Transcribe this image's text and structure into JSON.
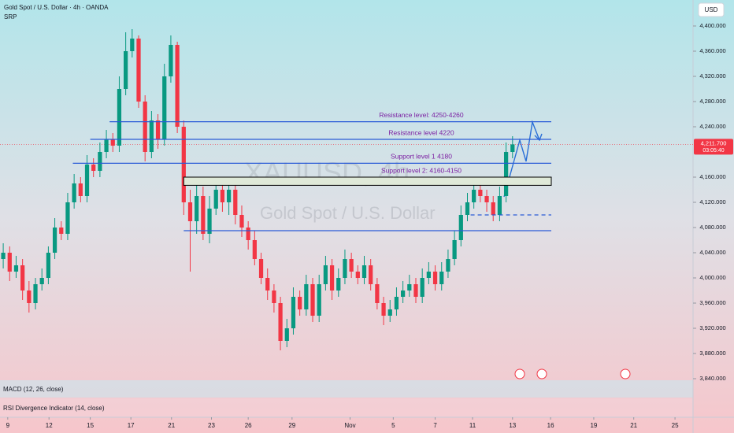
{
  "chart_data": {
    "type": "candlestick",
    "title": "Gold Spot / U.S. Dollar · 4h · OANDA",
    "subtitle": "SRP",
    "watermark": "XAUUSD, 4h",
    "watermark_sub": "Gold Spot / U.S. Dollar",
    "currency": "USD",
    "price_label": "4,211.700",
    "countdown": "03:05:40",
    "last_price": 4212,
    "up_color": "#089981",
    "down_color": "#f23645",
    "level_color": "#2a5bd7",
    "open": [
      4030,
      4040,
      4010,
      4020,
      3980,
      3960,
      3990,
      4000,
      4040,
      4080,
      4070,
      4120,
      4150,
      4130,
      4180,
      4170,
      4200,
      4220,
      4210,
      4300,
      4360,
      4380,
      4280,
      4200,
      4250,
      4220,
      4320,
      4370,
      4240,
      4120,
      4090,
      4130,
      4070,
      4110,
      4140,
      4120,
      4140,
      4100,
      4080,
      4060,
      4030,
      4000,
      3980,
      3960,
      3900,
      3920,
      3970,
      3950,
      3990,
      3940,
      3990,
      4020,
      3980,
      4000,
      4030,
      4010,
      4000,
      4020,
      3990,
      3960,
      3940,
      3950,
      3970,
      3980,
      3990,
      3970,
      4000,
      4010,
      3990,
      4010,
      4030,
      4060,
      4100,
      4120,
      4140,
      4130,
      4120,
      4100,
      4130,
      4200
    ],
    "high": [
      4055,
      4050,
      4035,
      4030,
      3995,
      4000,
      4015,
      4050,
      4095,
      4090,
      4135,
      4165,
      4160,
      4195,
      4190,
      4215,
      4235,
      4230,
      4320,
      4390,
      4395,
      4385,
      4290,
      4265,
      4260,
      4340,
      4385,
      4375,
      4250,
      4140,
      4150,
      4145,
      4130,
      4155,
      4150,
      4160,
      4150,
      4115,
      4090,
      4075,
      4040,
      4015,
      3990,
      3970,
      3935,
      3985,
      3980,
      4005,
      4000,
      4005,
      4035,
      4030,
      4015,
      4045,
      4040,
      4020,
      4035,
      4030,
      4000,
      3970,
      3965,
      3985,
      3995,
      4005,
      4000,
      4015,
      4025,
      4020,
      4025,
      4045,
      4075,
      4115,
      4135,
      4150,
      4150,
      4140,
      4130,
      4145,
      4215,
      4225
    ],
    "low": [
      4015,
      3995,
      4000,
      3965,
      3945,
      3950,
      3980,
      3990,
      4030,
      4060,
      4060,
      4110,
      4120,
      4120,
      4160,
      4160,
      4190,
      4200,
      4200,
      4290,
      4350,
      4270,
      4185,
      4190,
      4205,
      4210,
      4310,
      4230,
      4100,
      4010,
      4070,
      4060,
      4055,
      4100,
      4105,
      4100,
      4085,
      4065,
      4045,
      4020,
      3990,
      3965,
      3945,
      3885,
      3890,
      3910,
      3940,
      3940,
      3930,
      3930,
      3980,
      3965,
      3970,
      3990,
      4000,
      3990,
      3990,
      3980,
      3950,
      3925,
      3930,
      3940,
      3960,
      3970,
      3960,
      3960,
      3990,
      3980,
      3980,
      4000,
      4020,
      4050,
      4090,
      4110,
      4120,
      4105,
      4090,
      4090,
      4120,
      4190
    ],
    "close": [
      4040,
      4010,
      4020,
      3980,
      3960,
      3990,
      4000,
      4040,
      4080,
      4070,
      4120,
      4150,
      4130,
      4180,
      4170,
      4200,
      4220,
      4210,
      4300,
      4360,
      4380,
      4280,
      4200,
      4250,
      4220,
      4320,
      4370,
      4240,
      4120,
      4090,
      4130,
      4070,
      4110,
      4140,
      4120,
      4140,
      4100,
      4080,
      4060,
      4030,
      4000,
      3980,
      3960,
      3900,
      3920,
      3970,
      3950,
      3990,
      3940,
      3990,
      4020,
      3980,
      4000,
      4030,
      4010,
      4000,
      4020,
      3990,
      3960,
      3940,
      3950,
      3970,
      3980,
      3990,
      3970,
      4000,
      4010,
      3990,
      4010,
      4030,
      4060,
      4100,
      4120,
      4140,
      4130,
      4120,
      4100,
      4130,
      4200,
      4212
    ],
    "levels": [
      {
        "label": "Resistance level: 4250-4260",
        "value": 4248,
        "start": 16.5
      },
      {
        "label": "Resistance level 4220",
        "value": 4220,
        "start": 13.5
      },
      {
        "label": "Support level 1 4180",
        "value": 4182,
        "start": 10.8
      },
      {
        "label": "Support level 2: 4160-4150",
        "value": 4160,
        "value2": 4147,
        "start": 28
      },
      {
        "value": 4075,
        "start": 28
      },
      {
        "value": 4100,
        "start": 72.5,
        "dashed": true
      }
    ],
    "indicators": [
      "MACD (12, 26, close)",
      "RSI Divergence Indicator (14, close)"
    ],
    "xlim": [
      -0.5,
      107
    ],
    "xticks": [
      {
        "value": 0.7,
        "label": "9"
      },
      {
        "value": 7.1,
        "label": "12"
      },
      {
        "value": 13.5,
        "label": "15"
      },
      {
        "value": 19.8,
        "label": "17"
      },
      {
        "value": 26.1,
        "label": "21"
      },
      {
        "value": 32.3,
        "label": "23"
      },
      {
        "value": 38,
        "label": "26"
      },
      {
        "value": 44.8,
        "label": "29"
      },
      {
        "value": 53.8,
        "label": "Nov"
      },
      {
        "value": 60.5,
        "label": "5"
      },
      {
        "value": 67,
        "label": "7"
      },
      {
        "value": 72.8,
        "label": "11"
      },
      {
        "value": 79,
        "label": "13"
      },
      {
        "value": 84.9,
        "label": "16"
      },
      {
        "value": 91.6,
        "label": "19"
      },
      {
        "value": 97.8,
        "label": "21"
      },
      {
        "value": 104.2,
        "label": "25"
      }
    ],
    "ylim": [
      3837.5,
      4441.25
    ],
    "yticks": [
      {
        "value": 4400,
        "label": "4,400.000"
      },
      {
        "value": 4360,
        "label": "4,360.000"
      },
      {
        "value": 4320,
        "label": "4,320.000"
      },
      {
        "value": 4280,
        "label": "4,280.000"
      },
      {
        "value": 4240,
        "label": "4,240.000"
      },
      {
        "value": 4160,
        "label": "4,160.000"
      },
      {
        "value": 4120,
        "label": "4,120.000"
      },
      {
        "value": 4080,
        "label": "4,080.000"
      },
      {
        "value": 4040,
        "label": "4,040.000"
      },
      {
        "value": 4000,
        "label": "4,000.000"
      },
      {
        "value": 3960,
        "label": "3,960.000"
      },
      {
        "value": 3920,
        "label": "3,920.000"
      },
      {
        "value": 3880,
        "label": "3,880.000"
      },
      {
        "value": 3840,
        "label": "3,840.000"
      }
    ]
  }
}
